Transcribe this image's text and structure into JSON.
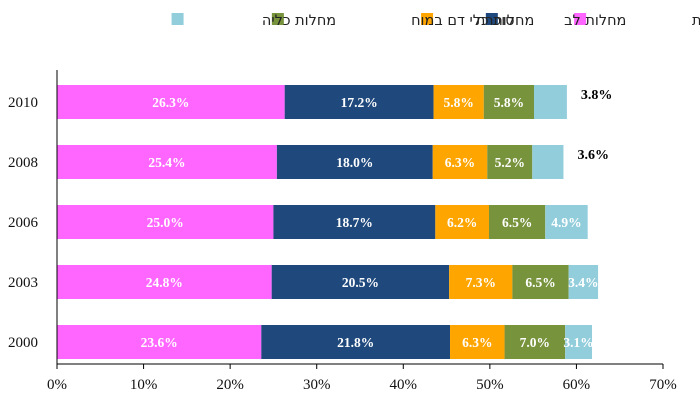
{
  "chart_data": {
    "type": "bar",
    "orientation": "horizontal",
    "stacked": true,
    "title": "",
    "xlabel": "",
    "ylabel": "",
    "xlim": [
      0,
      70
    ],
    "x_ticks": [
      "0%",
      "10%",
      "20%",
      "30%",
      "40%",
      "50%",
      "60%",
      "70%"
    ],
    "grid": false,
    "legend_position": "top",
    "categories": [
      "2010",
      "2008",
      "2006",
      "2003",
      "2000"
    ],
    "series": [
      {
        "name": "שאתות ממאירות",
        "color": "#ff66ff",
        "values": [
          26.3,
          25.4,
          25.0,
          24.8,
          23.6
        ],
        "labels": [
          "26.3%",
          "25.4%",
          "25.0%",
          "24.8%",
          "23.6%"
        ]
      },
      {
        "name": "מחלות לב",
        "color": "#1f497d",
        "values": [
          17.2,
          18.0,
          18.7,
          20.5,
          21.8
        ],
        "labels": [
          "17.2%",
          "18.0%",
          "18.7%",
          "20.5%",
          "21.8%"
        ]
      },
      {
        "name": "סוכרת",
        "color": "#ffa500",
        "values": [
          5.8,
          6.3,
          6.2,
          7.3,
          6.3
        ],
        "labels": [
          "5.8%",
          "6.3%",
          "6.2%",
          "7.3%",
          "6.3%"
        ]
      },
      {
        "name": "מחלות כלי דם במוח",
        "color": "#77933c",
        "values": [
          5.8,
          5.2,
          6.5,
          6.5,
          7.0
        ],
        "labels": [
          "5.8%",
          "5.2%",
          "6.5%",
          "6.5%",
          "7.0%"
        ]
      },
      {
        "name": "מחלות כליה",
        "color": "#92cddc",
        "values": [
          3.8,
          3.6,
          4.9,
          3.4,
          3.1
        ],
        "labels": [
          "3.8%",
          "3.6%",
          "4.9%",
          "3.4%",
          "3.1%"
        ]
      }
    ]
  }
}
